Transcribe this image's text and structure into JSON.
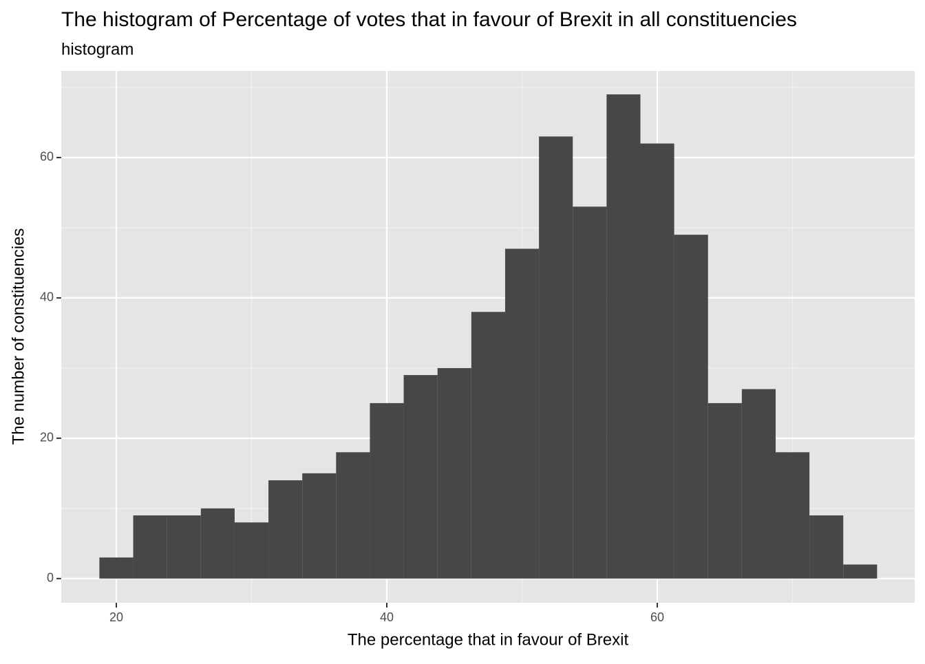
{
  "chart_data": {
    "type": "histogram",
    "title": "The histogram of Percentage of votes that in favour of Brexit in all constituencies",
    "subtitle": "histogram",
    "x_label": "The percentage that in favour of Brexit",
    "y_label": "The number of constituencies",
    "bins": [
      18.75,
      21.25,
      23.75,
      26.25,
      28.75,
      31.25,
      33.75,
      36.25,
      38.75,
      41.25,
      43.75,
      46.25,
      48.75,
      51.25,
      53.75,
      56.25,
      58.75,
      61.25,
      63.75,
      66.25,
      68.75,
      71.25,
      73.75,
      76.25
    ],
    "values": [
      3,
      9,
      9,
      10,
      8,
      14,
      15,
      18,
      25,
      29,
      30,
      38,
      47,
      63,
      53,
      69,
      62,
      49,
      25,
      27,
      18,
      9,
      2
    ],
    "color": "#474747",
    "xlim": [
      15.93,
      79.03
    ],
    "ylim": [
      -3.45,
      72.35
    ],
    "xticks": [
      20,
      40,
      60
    ],
    "yticks": [
      0,
      20,
      40,
      60
    ],
    "minor_xticks": [
      30,
      50,
      70
    ],
    "minor_yticks": [
      10,
      30,
      50,
      70
    ],
    "grid": true
  }
}
